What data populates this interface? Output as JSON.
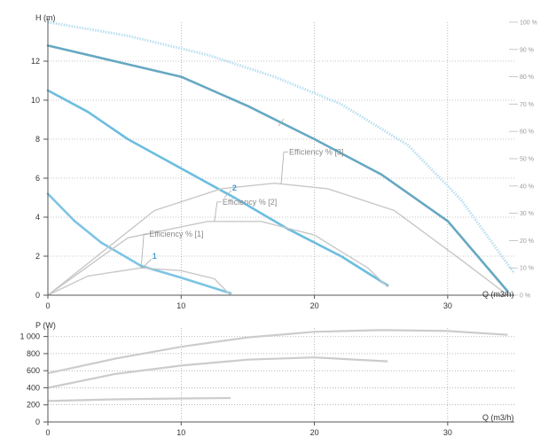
{
  "colors": {
    "head_small": "#7cc4e4",
    "head_medium": "#6bbde0",
    "head_large": "#66a8c2",
    "efficiency": "#c8c8c8",
    "efficiency_envelope": "#b8def0",
    "power": "#cccccc",
    "grid": "#8a8a8a",
    "axis": "#555555",
    "label_accent": "#3d9dd0"
  },
  "chart_data": [
    {
      "type": "line",
      "name": "head-and-efficiency",
      "xlabel": "Q (m3/h)",
      "ylabel": "H (m)",
      "y2label": "",
      "xlim": [
        0,
        35
      ],
      "ylim": [
        0,
        14
      ],
      "y2lim": [
        0,
        100
      ],
      "xticks": [
        "0",
        "10",
        "20",
        "30"
      ],
      "yticks": [
        "0",
        "2",
        "4",
        "6",
        "8",
        "10",
        "12"
      ],
      "y2ticks": [
        "0 %",
        "10 %",
        "20 %",
        "30 %",
        "40 %",
        "50 %",
        "60 %",
        "70 %",
        "80 %",
        "90 %",
        "100 %"
      ],
      "grid": true,
      "series": [
        {
          "name": "1",
          "kind": "head",
          "values": [
            [
              0,
              5.2
            ],
            [
              2,
              3.8
            ],
            [
              4,
              2.7
            ],
            [
              7,
              1.5
            ],
            [
              10,
              0.9
            ],
            [
              13.7,
              0.1
            ]
          ]
        },
        {
          "name": "2",
          "kind": "head",
          "values": [
            [
              0,
              10.5
            ],
            [
              3,
              9.4
            ],
            [
              6,
              8.0
            ],
            [
              10,
              6.5
            ],
            [
              14,
              5.0
            ],
            [
              18,
              3.4
            ],
            [
              22,
              2.0
            ],
            [
              25.5,
              0.5
            ]
          ]
        },
        {
          "name": "",
          "kind": "head",
          "values": [
            [
              0,
              12.8
            ],
            [
              5,
              12.0
            ],
            [
              10,
              11.2
            ],
            [
              15,
              9.7
            ],
            [
              20,
              8.0
            ],
            [
              25,
              6.2
            ],
            [
              30,
              3.8
            ],
            [
              34.5,
              0.2
            ]
          ]
        },
        {
          "name": "",
          "kind": "efficiency-envelope",
          "values": [
            [
              0,
              100
            ],
            [
              6,
              95
            ],
            [
              12,
              88
            ],
            [
              17,
              80
            ],
            [
              22,
              70
            ],
            [
              27,
              55
            ],
            [
              31,
              35
            ],
            [
              35,
              8
            ]
          ]
        },
        {
          "name": "Efficiency % [1]",
          "kind": "efficiency",
          "values": [
            [
              0,
              0
            ],
            [
              3,
              7
            ],
            [
              7,
              10
            ],
            [
              10,
              9
            ],
            [
              12.5,
              6
            ],
            [
              13.7,
              0
            ]
          ]
        },
        {
          "name": "Efficiency % [2]",
          "kind": "efficiency",
          "values": [
            [
              0,
              0
            ],
            [
              6,
              21
            ],
            [
              12,
              27
            ],
            [
              16,
              27
            ],
            [
              20,
              22
            ],
            [
              24,
              10
            ],
            [
              25.5,
              3
            ]
          ]
        },
        {
          "name": "Efficiency % [3]",
          "kind": "efficiency",
          "values": [
            [
              0,
              0
            ],
            [
              8,
              31
            ],
            [
              13,
              39
            ],
            [
              17,
              41
            ],
            [
              21,
              39
            ],
            [
              26,
              31
            ],
            [
              31,
              13
            ],
            [
              34.5,
              0
            ]
          ]
        }
      ],
      "labels": {
        "curve_1": "1",
        "curve_2": "2"
      },
      "annotations": [
        "Efficiency % [1]",
        "Efficiency % [2]",
        "Efficiency % [3]"
      ]
    },
    {
      "type": "line",
      "name": "power",
      "xlabel": "Q (m3/h)",
      "ylabel": "P (W)",
      "xlim": [
        0,
        35
      ],
      "ylim": [
        0,
        1100
      ],
      "xticks": [
        "0",
        "10",
        "20",
        "30"
      ],
      "yticks": [
        "0",
        "200",
        "400",
        "600",
        "800",
        "1 000"
      ],
      "grid": true,
      "series": [
        {
          "name": "",
          "values": [
            [
              0,
              245
            ],
            [
              5,
              265
            ],
            [
              10,
              275
            ],
            [
              13.7,
              280
            ]
          ]
        },
        {
          "name": "",
          "values": [
            [
              0,
              400
            ],
            [
              5,
              560
            ],
            [
              10,
              660
            ],
            [
              15,
              730
            ],
            [
              20,
              755
            ],
            [
              25.5,
              710
            ]
          ]
        },
        {
          "name": "",
          "values": [
            [
              0,
              570
            ],
            [
              5,
              740
            ],
            [
              10,
              880
            ],
            [
              15,
              990
            ],
            [
              20,
              1055
            ],
            [
              25,
              1075
            ],
            [
              30,
              1065
            ],
            [
              34.5,
              1020
            ]
          ]
        }
      ]
    }
  ]
}
